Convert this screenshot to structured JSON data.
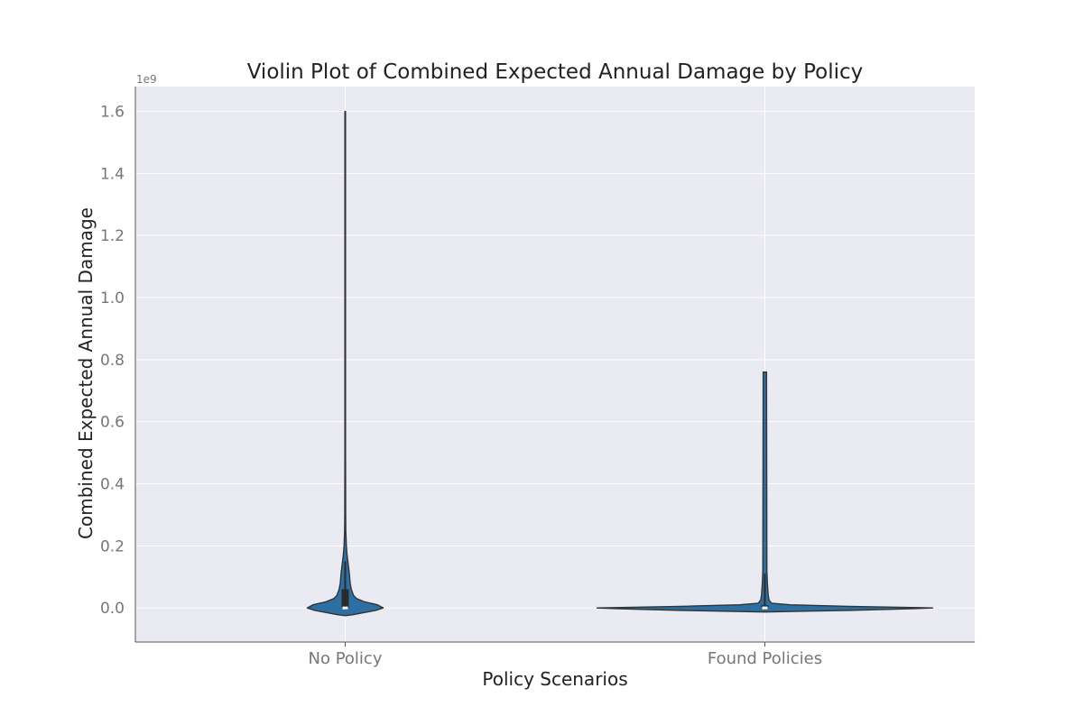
{
  "chart_data": {
    "type": "violin",
    "title": "Violin Plot of Combined Expected Annual Damage by Policy",
    "xlabel": "Policy Scenarios",
    "ylabel": "Combined Expected Annual Damage",
    "y_offset_text": "1e9",
    "categories": [
      "No Policy",
      "Found Policies"
    ],
    "ylim": [
      -110000000,
      1680000000
    ],
    "y_ticks": [
      0,
      200000000,
      400000000,
      600000000,
      800000000,
      1000000000,
      1200000000,
      1400000000,
      1600000000
    ],
    "y_tick_labels": [
      "0.0",
      "0.2",
      "0.4",
      "0.6",
      "0.8",
      "1.0",
      "1.2",
      "1.4",
      "1.6"
    ],
    "grid": true,
    "violin_color": "#2e6fa3",
    "background_color": "#eaeaf2",
    "violins": [
      {
        "category": "No Policy",
        "min": 0,
        "max": 1600000000,
        "q1": 0,
        "median": 0,
        "q3": 60000000,
        "whisker_high": 150000000,
        "density": [
          [
            -25000000,
            0.0
          ],
          [
            -22000000,
            0.2
          ],
          [
            -15000000,
            0.5
          ],
          [
            -8000000,
            0.8
          ],
          [
            0,
            1.0
          ],
          [
            10000000,
            0.85
          ],
          [
            20000000,
            0.5
          ],
          [
            30000000,
            0.3
          ],
          [
            40000000,
            0.22
          ],
          [
            60000000,
            0.16
          ],
          [
            80000000,
            0.13
          ],
          [
            110000000,
            0.11
          ],
          [
            140000000,
            0.08
          ],
          [
            170000000,
            0.05
          ],
          [
            200000000,
            0.03
          ],
          [
            250000000,
            0.015
          ],
          [
            300000000,
            0.012
          ],
          [
            500000000,
            0.008
          ],
          [
            1600000000,
            0.008
          ]
        ]
      },
      {
        "category": "Found Policies",
        "min": 0,
        "max": 760000000,
        "q1": 0,
        "median": 0,
        "q3": 3000000,
        "whisker_high": 110000000,
        "density": [
          [
            -13000000,
            0.0
          ],
          [
            -8000000,
            0.5
          ],
          [
            -3000000,
            0.85
          ],
          [
            0,
            1.0
          ],
          [
            5000000,
            0.5
          ],
          [
            10000000,
            0.15
          ],
          [
            15000000,
            0.04
          ],
          [
            25000000,
            0.025
          ],
          [
            40000000,
            0.02
          ],
          [
            80000000,
            0.015
          ],
          [
            120000000,
            0.012
          ],
          [
            760000000,
            0.01
          ]
        ]
      }
    ]
  }
}
